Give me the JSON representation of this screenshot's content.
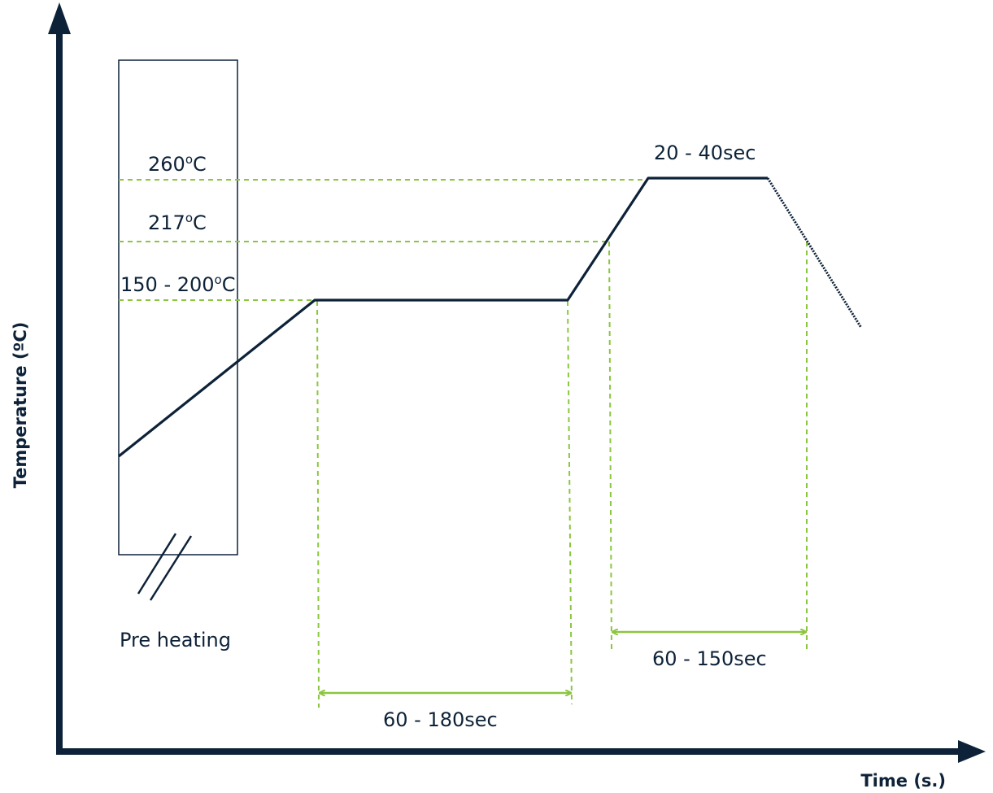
{
  "axes": {
    "y_label": "Temperature (ºC)",
    "x_label": "Time (s.)"
  },
  "preheat": {
    "label": "Pre heating"
  },
  "temperature_levels": [
    {
      "id": "peak",
      "label_main": "260",
      "label_sup": "o",
      "label_tail": "C"
    },
    {
      "id": "liquidus",
      "label_main": "217",
      "label_sup": "o",
      "label_tail": "C"
    },
    {
      "id": "soak",
      "label_main": "150 - 200",
      "label_sup": "o",
      "label_tail": "C"
    }
  ],
  "durations": {
    "peak": "20 - 40sec",
    "soak": "60 - 180sec",
    "above_liquidus": "60 - 150sec"
  },
  "colors": {
    "axis": "#0d2238",
    "profile": "#0d2238",
    "guide": "#8cc63f"
  }
}
